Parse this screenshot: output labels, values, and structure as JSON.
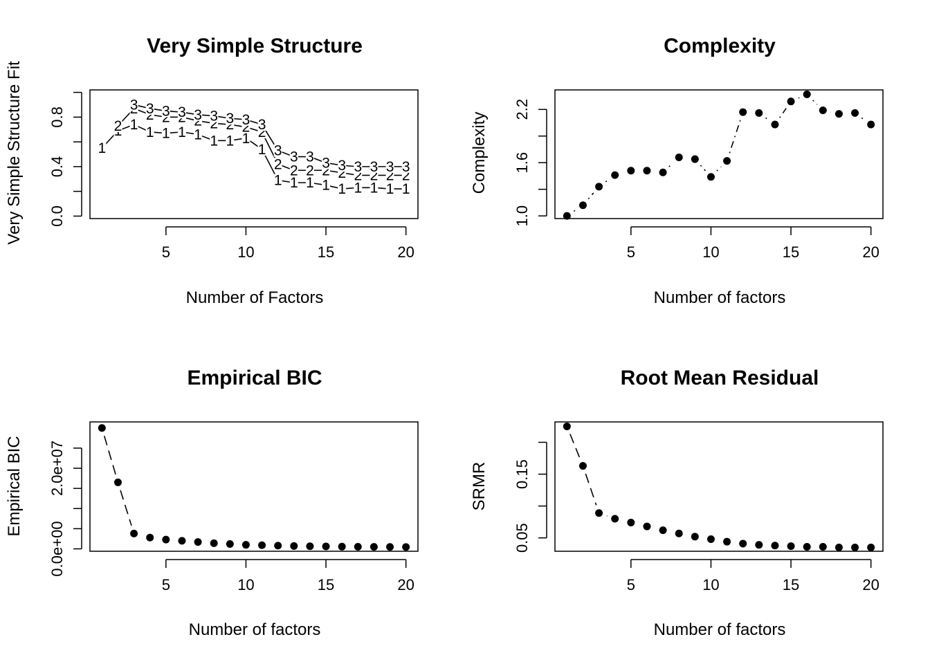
{
  "chart_data": [
    {
      "id": "vss",
      "type": "line",
      "title": "Very Simple Structure",
      "xlabel": "Number of Factors",
      "ylabel": "Very Simple Structure Fit",
      "xlim": [
        0.25,
        20.75
      ],
      "ylim": [
        -0.02,
        1.02
      ],
      "xticks": [
        5,
        10,
        15,
        20
      ],
      "xtick_labels": [
        "5",
        "10",
        "15",
        "20"
      ],
      "yticks": [
        0.0,
        0.2,
        0.4,
        0.6,
        0.8,
        1.0
      ],
      "ytick_labels": [
        "0.0",
        "",
        "0.4",
        "",
        "0.8",
        ""
      ],
      "marker": "digits",
      "x": [
        1,
        2,
        3,
        4,
        5,
        6,
        7,
        8,
        9,
        10,
        11,
        12,
        13,
        14,
        15,
        16,
        17,
        18,
        19,
        20
      ],
      "series": [
        {
          "name": "1",
          "values": [
            0.55,
            0.69,
            0.74,
            0.68,
            0.67,
            0.68,
            0.66,
            0.61,
            0.61,
            0.63,
            0.54,
            0.29,
            0.27,
            0.27,
            0.25,
            0.22,
            0.23,
            0.23,
            0.22,
            0.22
          ]
        },
        {
          "name": "2",
          "values": [
            null,
            0.73,
            0.87,
            0.82,
            0.8,
            0.8,
            0.77,
            0.75,
            0.74,
            0.72,
            0.68,
            0.42,
            0.37,
            0.37,
            0.37,
            0.35,
            0.33,
            0.33,
            0.33,
            0.33
          ]
        },
        {
          "name": "3",
          "values": [
            null,
            null,
            0.9,
            0.87,
            0.85,
            0.84,
            0.82,
            0.81,
            0.79,
            0.78,
            0.74,
            0.53,
            0.48,
            0.48,
            0.43,
            0.41,
            0.4,
            0.4,
            0.4,
            0.4
          ]
        }
      ]
    },
    {
      "id": "complexity",
      "type": "line",
      "title": "Complexity",
      "xlabel": "Number of factors",
      "ylabel": "Complexity",
      "xlim": [
        0.25,
        20.75
      ],
      "ylim": [
        0.97,
        2.42
      ],
      "xticks": [
        5,
        10,
        15,
        20
      ],
      "xtick_labels": [
        "5",
        "10",
        "15",
        "20"
      ],
      "yticks": [
        1.0,
        1.3,
        1.6,
        1.9,
        2.2
      ],
      "ytick_labels": [
        "1.0",
        "",
        "1.6",
        "",
        "2.2"
      ],
      "marker": "points",
      "line_style": "dash-dot",
      "x": [
        1,
        2,
        3,
        4,
        5,
        6,
        7,
        8,
        9,
        10,
        11,
        12,
        13,
        14,
        15,
        16,
        17,
        18,
        19,
        20
      ],
      "values": [
        1.0,
        1.12,
        1.33,
        1.46,
        1.51,
        1.51,
        1.49,
        1.66,
        1.64,
        1.44,
        1.62,
        2.17,
        2.16,
        2.03,
        2.29,
        2.37,
        2.19,
        2.15,
        2.16,
        2.03
      ]
    },
    {
      "id": "ebic",
      "type": "line",
      "title": "Empirical BIC",
      "xlabel": "Number of factors",
      "ylabel": "Empirical BIC",
      "xlim": [
        0.25,
        20.75
      ],
      "ylim": [
        -600000,
        31500000
      ],
      "xticks": [
        5,
        10,
        15,
        20
      ],
      "xtick_labels": [
        "5",
        "10",
        "15",
        "20"
      ],
      "yticks": [
        0,
        10000000,
        20000000
      ],
      "ytick_labels": [
        "0.0e+00",
        "",
        "2.0e+07"
      ],
      "extra_yticks": [
        5000000,
        15000000,
        25000000
      ],
      "marker": "points",
      "line_style": "dashed",
      "x": [
        1,
        2,
        3,
        4,
        5,
        6,
        7,
        8,
        9,
        10,
        11,
        12,
        13,
        14,
        15,
        16,
        17,
        18,
        19,
        20
      ],
      "values": [
        30000000,
        16500000,
        3800000,
        2800000,
        2300000,
        2000000,
        1700000,
        1400000,
        1200000,
        1000000,
        900000,
        800000,
        700000,
        650000,
        600000,
        550000,
        520000,
        500000,
        480000,
        460000
      ]
    },
    {
      "id": "srmr",
      "type": "line",
      "title": "Root Mean Residual",
      "xlabel": "Number of factors",
      "ylabel": "SRMR",
      "xlim": [
        0.25,
        20.75
      ],
      "ylim": [
        0.029,
        0.232
      ],
      "xticks": [
        5,
        10,
        15,
        20
      ],
      "xtick_labels": [
        "5",
        "10",
        "15",
        "20"
      ],
      "yticks": [
        0.05,
        0.1,
        0.15,
        0.2
      ],
      "ytick_labels": [
        "0.05",
        "",
        "0.15",
        ""
      ],
      "marker": "points",
      "line_style": "dashed",
      "x": [
        1,
        2,
        3,
        4,
        5,
        6,
        7,
        8,
        9,
        10,
        11,
        12,
        13,
        14,
        15,
        16,
        17,
        18,
        19,
        20
      ],
      "values": [
        0.225,
        0.163,
        0.089,
        0.08,
        0.074,
        0.068,
        0.062,
        0.057,
        0.052,
        0.048,
        0.044,
        0.041,
        0.039,
        0.038,
        0.037,
        0.036,
        0.036,
        0.035,
        0.035,
        0.035
      ]
    }
  ]
}
